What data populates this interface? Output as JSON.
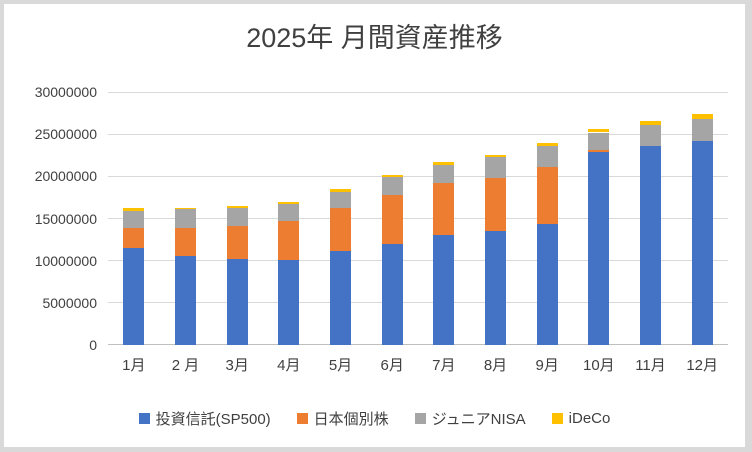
{
  "chart_data": {
    "type": "bar",
    "stacked": true,
    "title": "2025年 月間資産推移",
    "categories": [
      "1月",
      "2 月",
      "3月",
      "4月",
      "5月",
      "6月",
      "7月",
      "8月",
      "9月",
      "10月",
      "11月",
      "12月"
    ],
    "series": [
      {
        "name": "投資信託(SP500)",
        "color": "#4472c4",
        "values": [
          11550000,
          10550000,
          10250000,
          10100000,
          11150000,
          12000000,
          13100000,
          13500000,
          14300000,
          22900000,
          23550000,
          24250000
        ]
      },
      {
        "name": "日本個別株",
        "color": "#ed7d31",
        "values": [
          2300000,
          3300000,
          3850000,
          4600000,
          5100000,
          5800000,
          6150000,
          6300000,
          6800000,
          200000,
          0,
          0
        ]
      },
      {
        "name": "ジュニアNISA",
        "color": "#a5a5a5",
        "values": [
          2050000,
          2250000,
          2200000,
          2000000,
          1950000,
          2100000,
          2100000,
          2450000,
          2500000,
          2100000,
          2550000,
          2550000
        ]
      },
      {
        "name": "iDeCo",
        "color": "#ffc000",
        "values": [
          300000,
          200000,
          200000,
          250000,
          300000,
          300000,
          300000,
          300000,
          350000,
          450000,
          450000,
          550000
        ]
      }
    ],
    "y_ticks": [
      0,
      5000000,
      10000000,
      15000000,
      20000000,
      25000000,
      30000000
    ],
    "y_tick_labels": [
      "0",
      "5000000",
      "10000000",
      "15000000",
      "20000000",
      "25000000",
      "30000000"
    ],
    "ylim": [
      0,
      30000000
    ],
    "xlabel": "",
    "ylabel": "",
    "grid": true,
    "legend_position": "bottom",
    "colors": {
      "title_text": "#404040",
      "tick_text": "#404040",
      "gridline": "#d9d9d9",
      "axis_line": "#bfbfbf",
      "canvas_background": "#ffffff",
      "frame_background": "#d9d9d9"
    }
  }
}
